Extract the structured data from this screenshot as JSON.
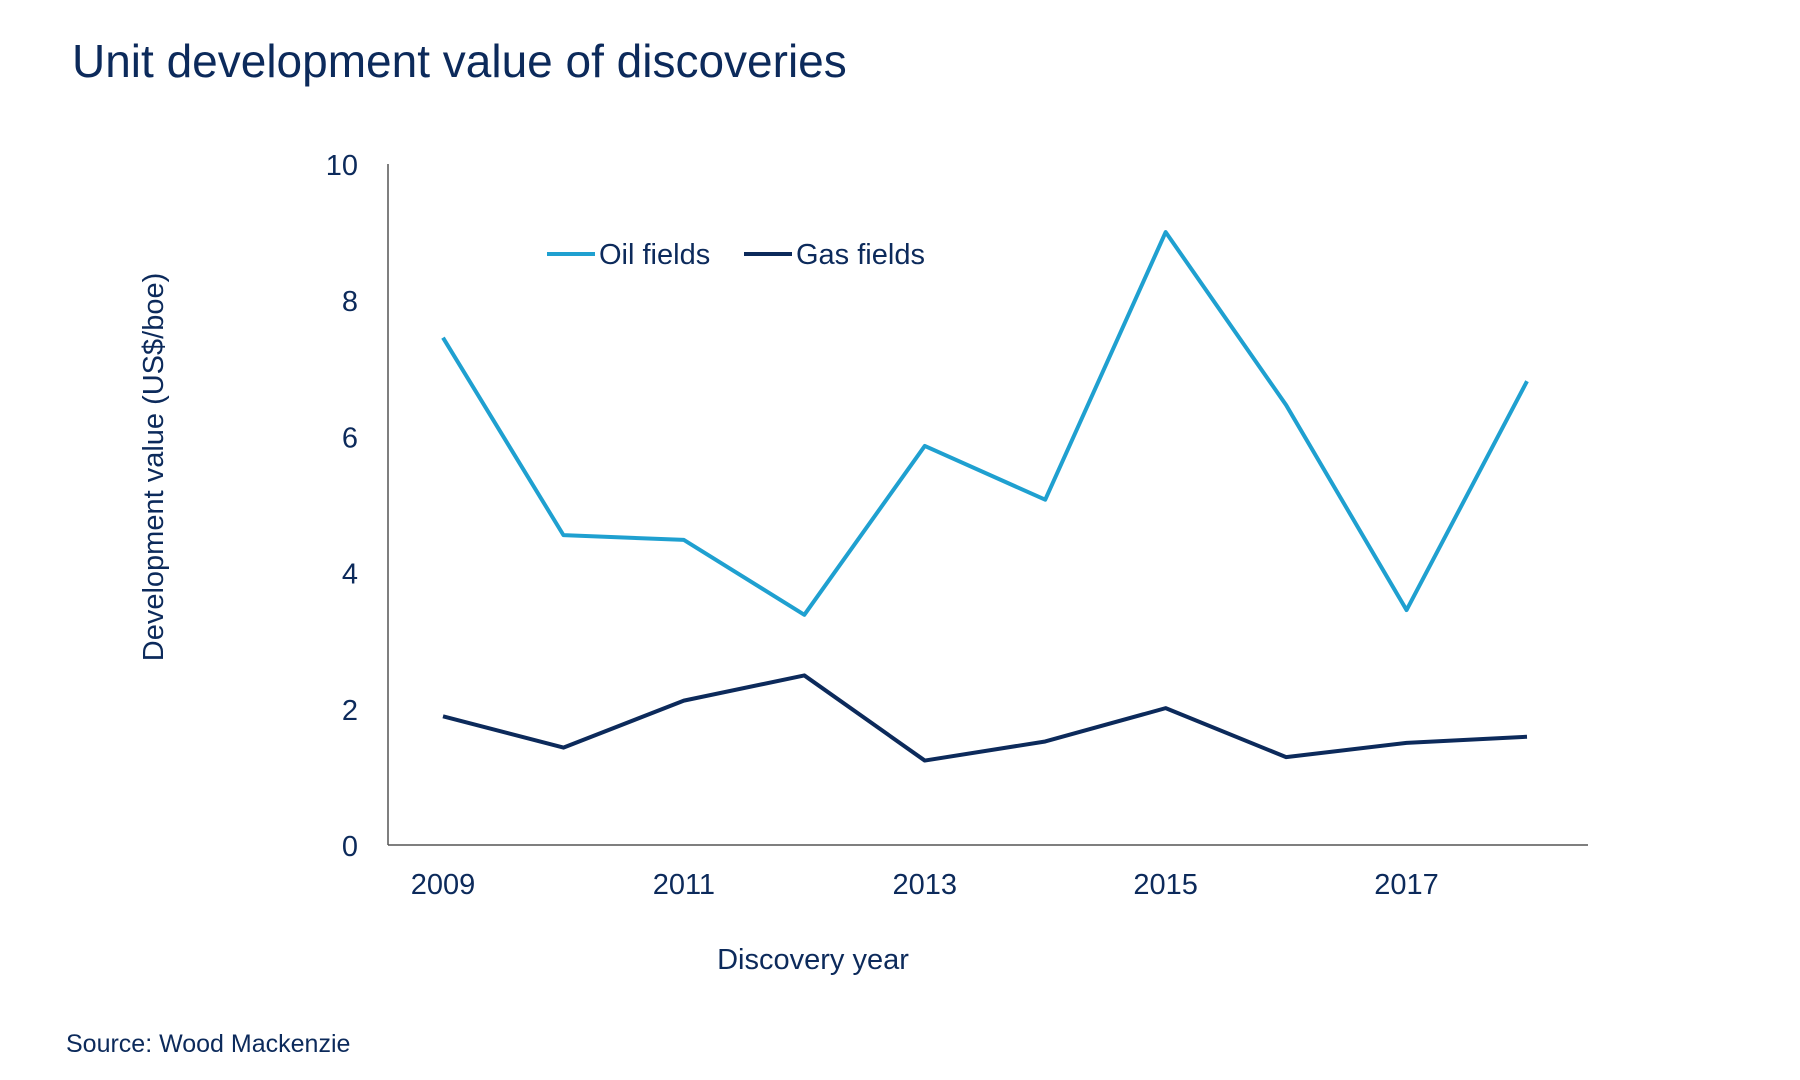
{
  "chart_data": {
    "type": "line",
    "title": "Unit development value of discoveries",
    "xlabel": "Discovery year",
    "ylabel": "Development value (US$/boe)",
    "x": [
      2009,
      2010,
      2011,
      2012,
      2013,
      2014,
      2015,
      2016,
      2017,
      2018
    ],
    "x_tick_labels": [
      "2009",
      "2011",
      "2013",
      "2015",
      "2017"
    ],
    "y_tick_labels": [
      "0",
      "2",
      "4",
      "6",
      "8",
      "10"
    ],
    "ylim": [
      0,
      10
    ],
    "grid": false,
    "legend_placement": "top-left",
    "series": [
      {
        "name": "Oil fields",
        "color": "#1fa0d0",
        "values": [
          7.45,
          4.55,
          4.48,
          3.38,
          5.86,
          5.07,
          9.0,
          6.46,
          3.45,
          6.81
        ]
      },
      {
        "name": "Gas fields",
        "color": "#0c2a5b",
        "values": [
          1.89,
          1.43,
          2.12,
          2.49,
          1.24,
          1.52,
          2.01,
          1.29,
          1.5,
          1.59
        ]
      }
    ]
  },
  "source": "Source: Wood Mackenzie"
}
